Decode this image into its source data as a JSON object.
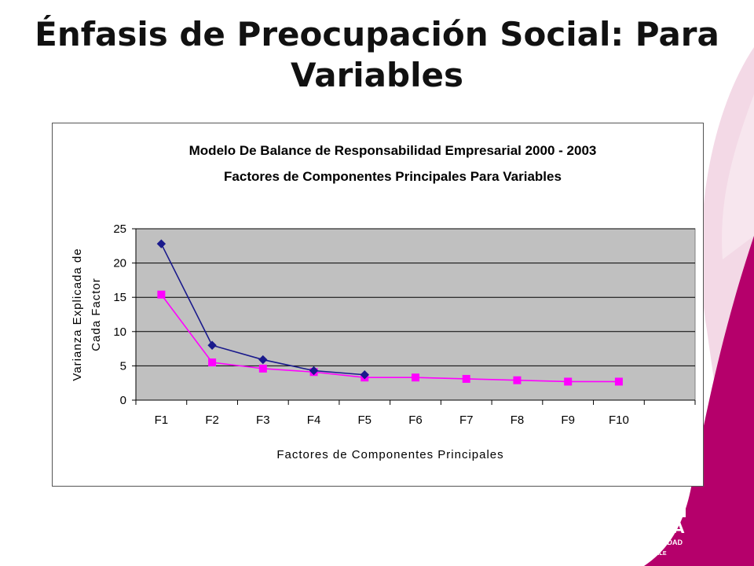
{
  "slide": {
    "title": "Énfasis de Preocupación Social: Para Variables"
  },
  "logo": {
    "line1": "TALCA",
    "line2": "UNIVERSIDAD",
    "line3": "CHILE"
  },
  "colors": {
    "background_accent": "#b5006b",
    "plot_background": "#c0c0c0",
    "series1": "#1a1a8c",
    "series2": "#ff00ff"
  },
  "chart_data": {
    "type": "line",
    "title_lines": [
      "Modelo De Balance de Responsabilidad Empresarial 2000 - 2003",
      "Factores de Componentes Principales Para Variables"
    ],
    "xlabel": "Factores de Componentes Principales",
    "ylabel_lines": [
      "Varianza Explicada de",
      "Cada Factor"
    ],
    "categories": [
      "F1",
      "F2",
      "F3",
      "F4",
      "F5",
      "F6",
      "F7",
      "F8",
      "F9",
      "F10"
    ],
    "ylim": [
      0,
      25
    ],
    "yticks": [
      0,
      5,
      10,
      15,
      20,
      25
    ],
    "grid": true,
    "legend": "none",
    "series": [
      {
        "values": [
          22.8,
          8.0,
          5.9,
          4.3,
          3.7,
          null,
          null,
          null,
          null,
          null
        ],
        "marker": "diamond",
        "color": "#1a1a8c"
      },
      {
        "values": [
          15.4,
          5.5,
          4.6,
          4.1,
          3.3,
          3.3,
          3.1,
          2.9,
          2.7,
          2.7
        ],
        "marker": "square",
        "color": "#ff00ff"
      }
    ]
  }
}
